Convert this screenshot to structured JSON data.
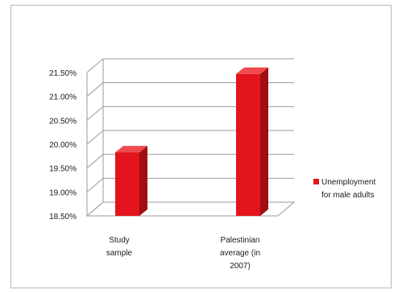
{
  "chart_data": {
    "type": "bar",
    "style": "3d-column",
    "categories": [
      [
        "Study",
        "sample"
      ],
      [
        "Palestinian",
        "average (in",
        "2007)"
      ]
    ],
    "series": [
      {
        "name": [
          "Unemployment",
          "for male adults"
        ],
        "values": [
          19.83,
          21.47
        ],
        "color": "#e3141c"
      }
    ],
    "y_ticks": [
      "18.50%",
      "19.00%",
      "19.50%",
      "20.00%",
      "20.50%",
      "21.00%",
      "21.50%"
    ],
    "ylim": [
      18.5,
      21.5
    ],
    "y_unit": "%",
    "grid": true,
    "legend_position": "right",
    "colors": {
      "bar_front": "#e3141c",
      "bar_side": "#a00d12",
      "bar_top": "#f04a4f",
      "grid": "#9a9a9a"
    }
  }
}
